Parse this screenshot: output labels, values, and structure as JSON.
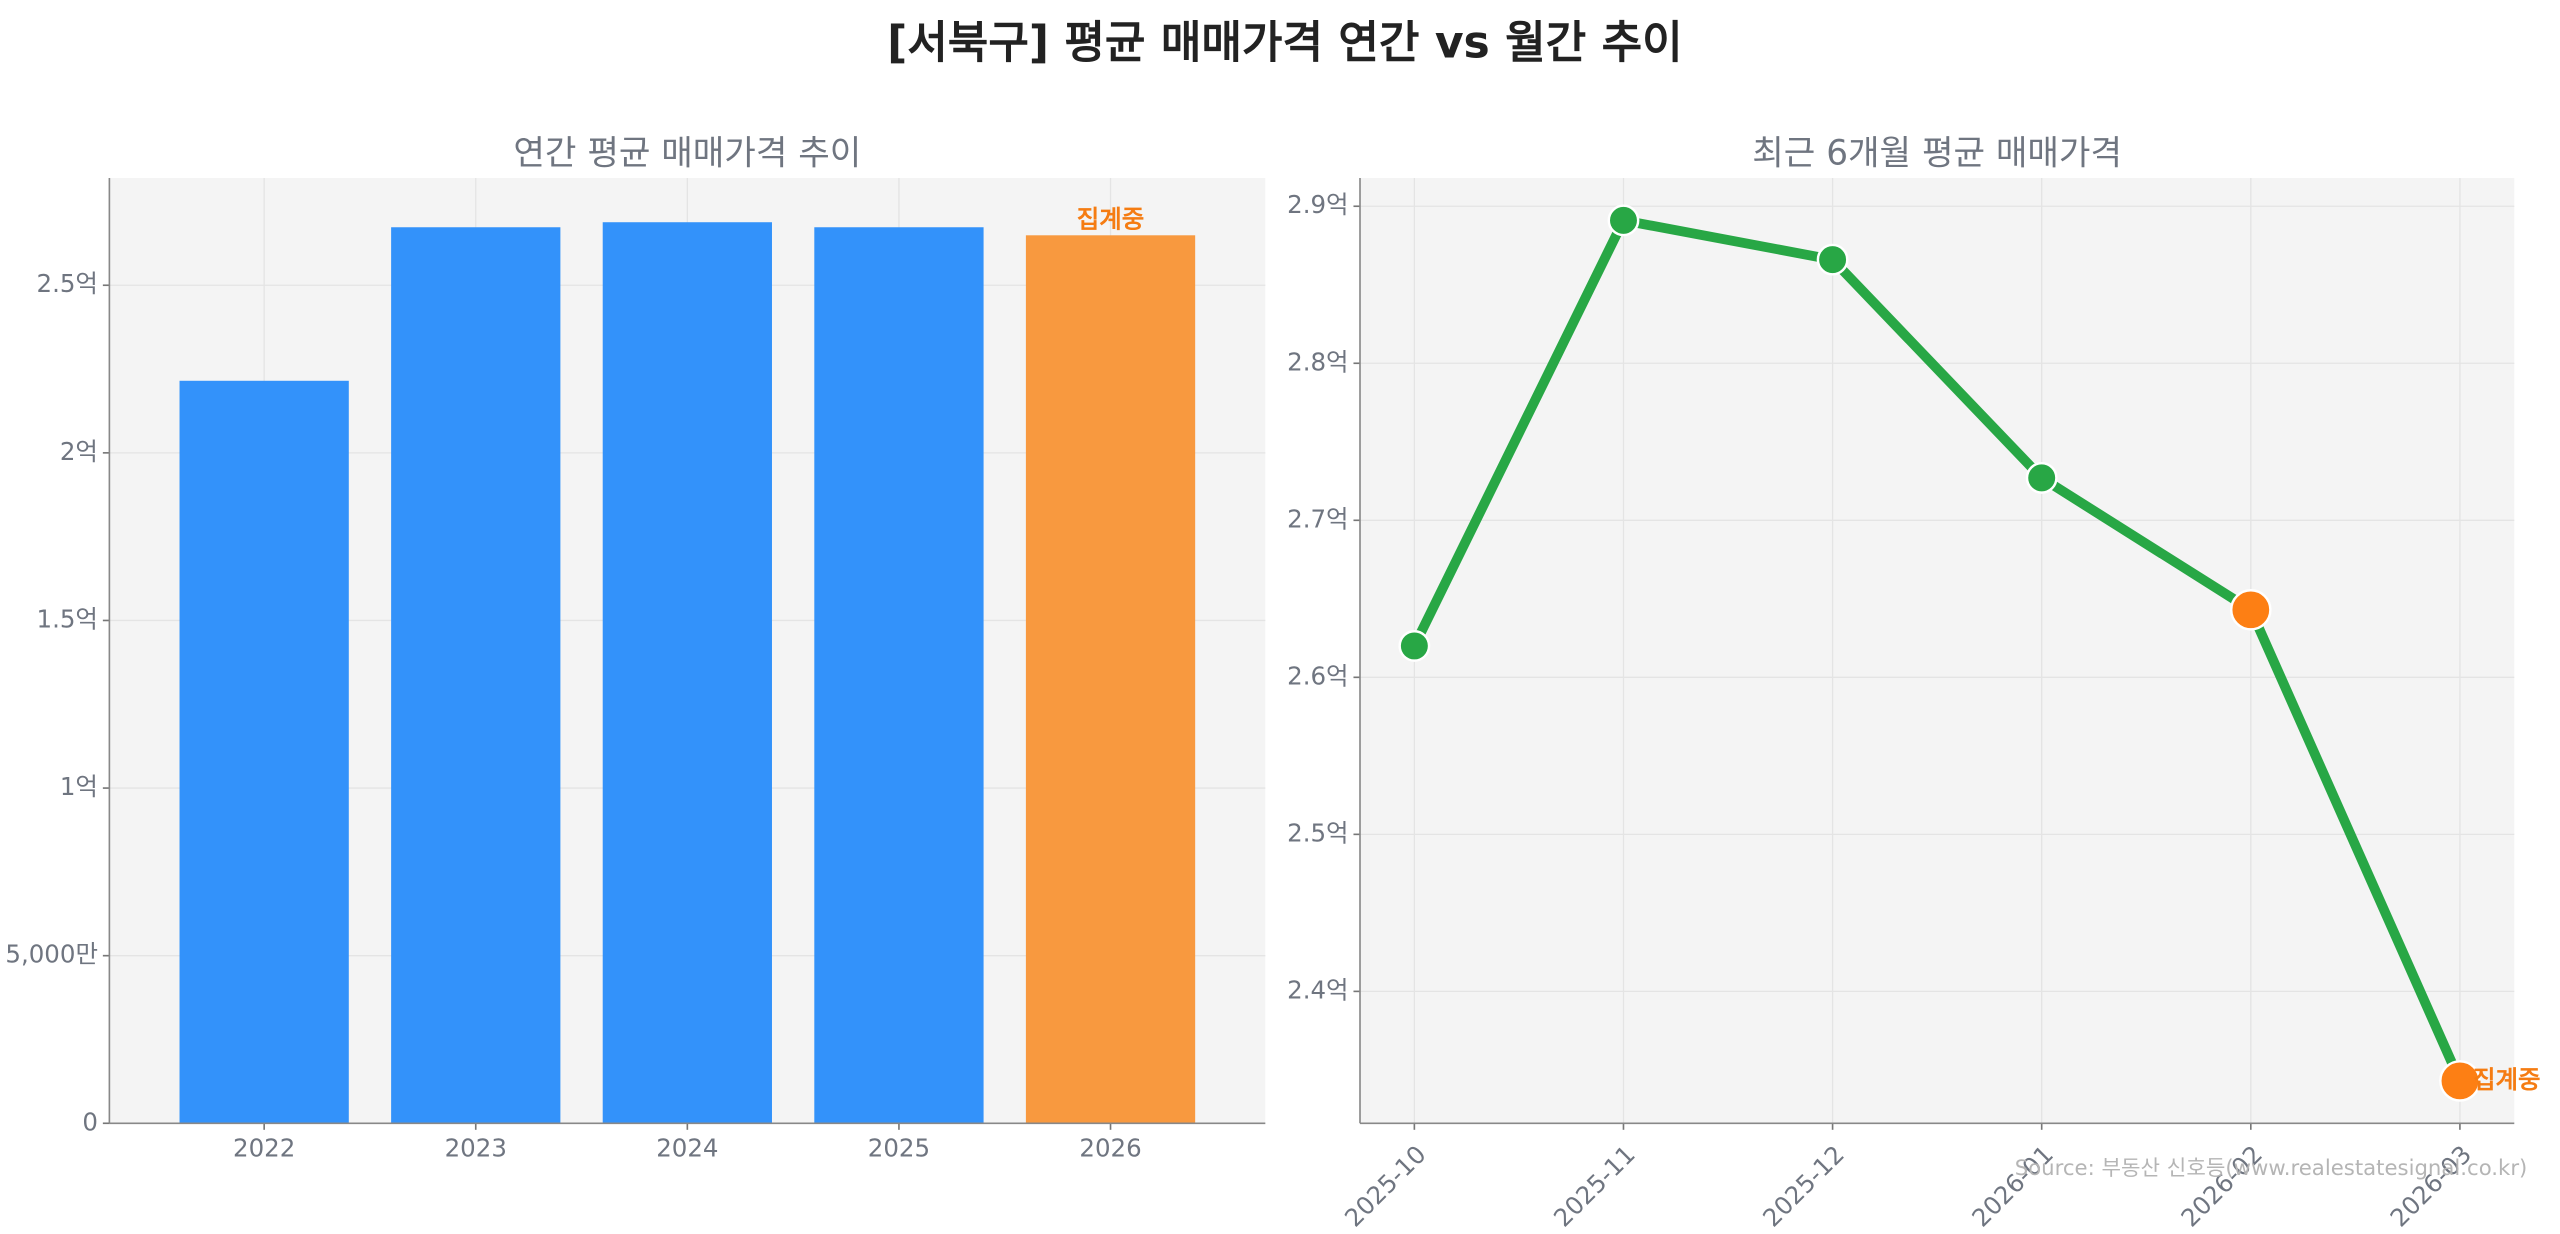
{
  "title": "[서북구] 평균 매매가격 연간 vs 월간 추이",
  "source": "Source: 부동산 신호등(www.realestatesignal.co.kr)",
  "chart_data": [
    {
      "type": "bar",
      "title": "연간 평균 매매가격 추이",
      "categories": [
        "2022",
        "2023",
        "2024",
        "2025",
        "2026"
      ],
      "values": [
        2.215,
        2.673,
        2.688,
        2.673,
        2.649
      ],
      "colors": [
        "#3392fa",
        "#3392fa",
        "#3392fa",
        "#3392fa",
        "#f8993f"
      ],
      "annotation": "집계중",
      "ylim": [
        0,
        2.82
      ],
      "yticks": [
        0,
        {
          "value": 0.5,
          "label": "5,000만"
        },
        {
          "value": 1,
          "label": "1억"
        },
        {
          "value": 1.5,
          "label": "1.5억"
        },
        {
          "value": 2,
          "label": "2억"
        },
        {
          "value": 2.5,
          "label": "2.5억"
        }
      ],
      "grid": true
    },
    {
      "type": "line",
      "title": "최근 6개월 평균 매매가격",
      "categories": [
        "2025-10",
        "2025-11",
        "2025-12",
        "2026-01",
        "2026-02",
        "2026-03"
      ],
      "values": [
        2.62,
        2.891,
        2.866,
        2.727,
        2.643,
        2.343
      ],
      "color": "#28a745",
      "marker_colors": [
        "#28a745",
        "#28a745",
        "#28a745",
        "#28a745",
        "#fd7f14",
        "#fd7f14"
      ],
      "annotation": "집계중",
      "ylim": [
        2.316,
        2.918
      ],
      "yticks": [
        {
          "value": 2.4,
          "label": "2.4억"
        },
        {
          "value": 2.5,
          "label": "2.5억"
        },
        {
          "value": 2.6,
          "label": "2.6억"
        },
        {
          "value": 2.7,
          "label": "2.7억"
        },
        {
          "value": 2.8,
          "label": "2.8억"
        },
        {
          "value": 2.9,
          "label": "2.9억"
        }
      ],
      "grid": true
    }
  ]
}
